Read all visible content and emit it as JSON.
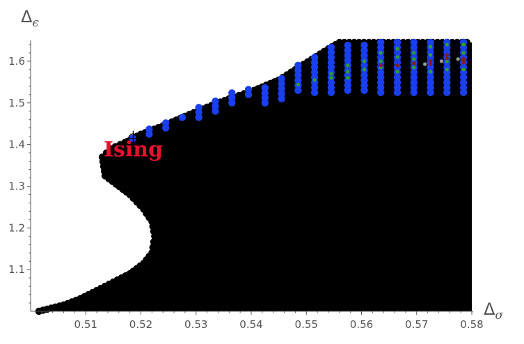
{
  "chart_data": {
    "type": "scatter",
    "title": "",
    "xlabel": "Δ",
    "xlabel_subscript": "σ",
    "ylabel": "Δ",
    "ylabel_subscript": "ϵ",
    "xlim": [
      0.5,
      0.58
    ],
    "ylim": [
      1.0,
      1.65
    ],
    "xticks": [
      0.51,
      0.52,
      0.53,
      0.54,
      0.55,
      0.56,
      0.57,
      0.58
    ],
    "xtick_labels": [
      "0.51",
      "0.52",
      "0.53",
      "0.54",
      "0.55",
      "0.56",
      "0.57",
      "0.58"
    ],
    "yticks": [
      1.1,
      1.2,
      1.3,
      1.4,
      1.5,
      1.6
    ],
    "ytick_labels": [
      "1.1",
      "1.2",
      "1.3",
      "1.4",
      "1.5",
      "1.6"
    ],
    "grid": false,
    "region": {
      "color": "#000000",
      "boundary": [
        [
          0.5015,
          1.0
        ],
        [
          0.503,
          1.005
        ],
        [
          0.506,
          1.015
        ],
        [
          0.509,
          1.03
        ],
        [
          0.512,
          1.05
        ],
        [
          0.515,
          1.07
        ],
        [
          0.518,
          1.09
        ],
        [
          0.5205,
          1.115
        ],
        [
          0.522,
          1.14
        ],
        [
          0.5225,
          1.18
        ],
        [
          0.522,
          1.215
        ],
        [
          0.5205,
          1.245
        ],
        [
          0.518,
          1.28
        ],
        [
          0.5155,
          1.305
        ],
        [
          0.5135,
          1.325
        ],
        [
          0.513,
          1.37
        ],
        [
          0.5145,
          1.39
        ],
        [
          0.518,
          1.41
        ],
        [
          0.52,
          1.425
        ],
        [
          0.524,
          1.445
        ],
        [
          0.528,
          1.468
        ],
        [
          0.532,
          1.49
        ],
        [
          0.536,
          1.51
        ],
        [
          0.5405,
          1.53
        ],
        [
          0.545,
          1.555
        ],
        [
          0.548,
          1.58
        ],
        [
          0.551,
          1.605
        ],
        [
          0.554,
          1.63
        ],
        [
          0.556,
          1.645
        ],
        [
          0.58,
          1.645
        ],
        [
          0.58,
          1.0
        ]
      ]
    },
    "series": [
      {
        "color": "#1a3ff0",
        "columns": [
          {
            "x": 0.5215,
            "y_from": 1.425,
            "y_to": 1.445
          },
          {
            "x": 0.5245,
            "y_from": 1.44,
            "y_to": 1.455
          },
          {
            "x": 0.5275,
            "y_from": 1.465,
            "y_to": 1.465
          },
          {
            "x": 0.5305,
            "y_from": 1.465,
            "y_to": 1.5
          },
          {
            "x": 0.5335,
            "y_from": 1.48,
            "y_to": 1.51
          },
          {
            "x": 0.5365,
            "y_from": 1.5,
            "y_to": 1.525
          },
          {
            "x": 0.5395,
            "y_from": 1.52,
            "y_to": 1.535
          },
          {
            "x": 0.5425,
            "y_from": 1.5,
            "y_to": 1.545
          },
          {
            "x": 0.5455,
            "y_from": 1.51,
            "y_to": 1.565
          },
          {
            "x": 0.5485,
            "y_from": 1.53,
            "y_to": 1.6
          },
          {
            "x": 0.5515,
            "y_from": 1.525,
            "y_to": 1.62
          },
          {
            "x": 0.5545,
            "y_from": 1.525,
            "y_to": 1.64
          },
          {
            "x": 0.5575,
            "y_from": 1.53,
            "y_to": 1.645
          },
          {
            "x": 0.5605,
            "y_from": 1.53,
            "y_to": 1.645
          },
          {
            "x": 0.5635,
            "y_from": 1.525,
            "y_to": 1.645
          },
          {
            "x": 0.5665,
            "y_from": 1.525,
            "y_to": 1.645
          },
          {
            "x": 0.5695,
            "y_from": 1.525,
            "y_to": 1.645
          },
          {
            "x": 0.5725,
            "y_from": 1.525,
            "y_to": 1.645
          },
          {
            "x": 0.5755,
            "y_from": 1.525,
            "y_to": 1.645
          },
          {
            "x": 0.5785,
            "y_from": 1.525,
            "y_to": 1.645
          }
        ],
        "points": [
          [
            0.5185,
            1.415
          ]
        ]
      },
      {
        "color": "#2ca02c",
        "points": [
          [
            0.5485,
            1.544
          ],
          [
            0.5515,
            1.555
          ],
          [
            0.5545,
            1.57
          ],
          [
            0.5545,
            1.56
          ],
          [
            0.5575,
            1.59
          ],
          [
            0.5575,
            1.575
          ],
          [
            0.5575,
            1.56
          ],
          [
            0.5605,
            1.6
          ],
          [
            0.5605,
            1.58
          ],
          [
            0.5635,
            1.62
          ],
          [
            0.5635,
            1.6
          ],
          [
            0.5635,
            1.585
          ],
          [
            0.5665,
            1.63
          ],
          [
            0.5665,
            1.61
          ],
          [
            0.5665,
            1.575
          ],
          [
            0.5695,
            1.62
          ],
          [
            0.5695,
            1.605
          ],
          [
            0.5695,
            1.585
          ],
          [
            0.5725,
            1.635
          ],
          [
            0.5725,
            1.615
          ],
          [
            0.5725,
            1.575
          ],
          [
            0.5755,
            1.64
          ],
          [
            0.5755,
            1.6
          ],
          [
            0.5755,
            1.58
          ],
          [
            0.5785,
            1.64
          ],
          [
            0.5785,
            1.62
          ],
          [
            0.5785,
            1.58
          ]
        ]
      },
      {
        "color": "#8b1a1a",
        "points": [
          [
            0.5635,
            1.59
          ],
          [
            0.5665,
            1.59
          ],
          [
            0.5695,
            1.595
          ],
          [
            0.5725,
            1.6
          ],
          [
            0.5725,
            1.593
          ],
          [
            0.5755,
            1.615
          ],
          [
            0.5755,
            1.607
          ],
          [
            0.5785,
            1.605
          ],
          [
            0.5785,
            1.597
          ]
        ]
      },
      {
        "color": "#999999",
        "points": [
          [
            0.5715,
            1.593
          ],
          [
            0.5745,
            1.6
          ],
          [
            0.5775,
            1.605
          ]
        ]
      }
    ],
    "annotations": [
      {
        "text": "Ising",
        "x": 0.5135,
        "y": 1.37,
        "color": "#e8112d"
      }
    ],
    "markers": [
      {
        "type": "crosshair",
        "x": 0.5186,
        "y": 1.415
      }
    ]
  }
}
